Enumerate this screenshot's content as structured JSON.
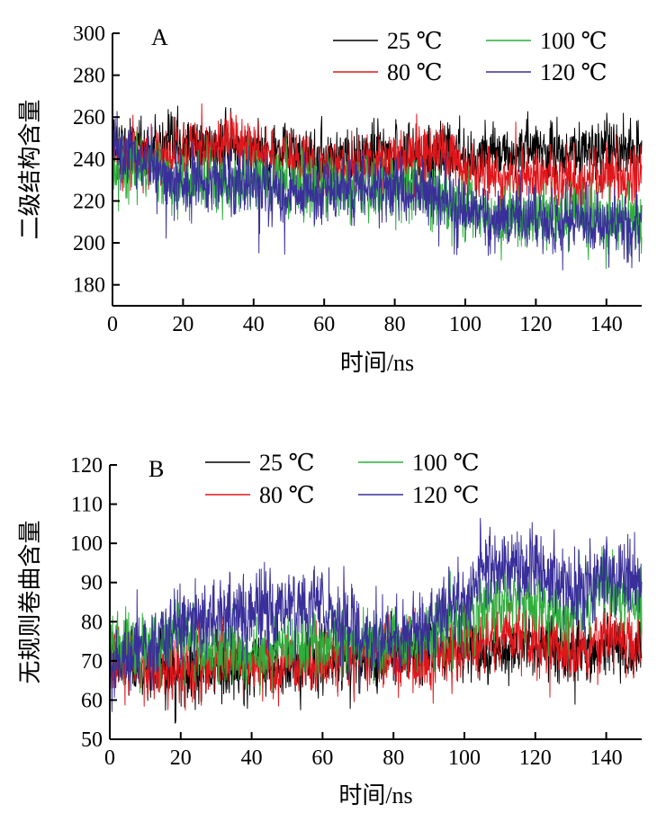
{
  "chart_data": [
    {
      "type": "line",
      "panel_label": "A",
      "xlabel": "时间/ns",
      "ylabel": "二级结构含量",
      "xlim": [
        0,
        150
      ],
      "ylim": [
        170,
        300
      ],
      "xticks": [
        0,
        20,
        40,
        60,
        80,
        100,
        120,
        140
      ],
      "yticks": [
        180,
        200,
        220,
        240,
        260,
        280,
        300
      ],
      "grid": false,
      "legend_position": "top-right",
      "series": [
        {
          "name": "25 ℃",
          "color": "#000000",
          "x": [
            0,
            10,
            20,
            30,
            40,
            50,
            60,
            70,
            80,
            90,
            100,
            110,
            120,
            130,
            140,
            150
          ],
          "y": [
            247,
            245,
            245,
            246,
            244,
            242,
            242,
            241,
            243,
            242,
            243,
            242,
            244,
            243,
            244,
            244
          ],
          "noise": 8
        },
        {
          "name": "80 ℃",
          "color": "#e0161b",
          "x": [
            0,
            10,
            20,
            30,
            40,
            50,
            60,
            70,
            80,
            90,
            100,
            110,
            120,
            130,
            140,
            150
          ],
          "y": [
            238,
            241,
            244,
            248,
            245,
            238,
            236,
            237,
            240,
            244,
            236,
            231,
            232,
            228,
            232,
            230
          ],
          "noise": 8
        },
        {
          "name": "100 ℃",
          "color": "#2fae3c",
          "x": [
            0,
            10,
            20,
            30,
            40,
            50,
            60,
            70,
            80,
            90,
            100,
            110,
            120,
            130,
            140,
            150
          ],
          "y": [
            240,
            235,
            226,
            231,
            230,
            227,
            226,
            228,
            227,
            223,
            217,
            209,
            213,
            213,
            210,
            212
          ],
          "noise": 9
        },
        {
          "name": "120 ℃",
          "color": "#3a2f9a",
          "x": [
            0,
            10,
            20,
            30,
            40,
            50,
            60,
            70,
            80,
            90,
            100,
            110,
            120,
            130,
            140,
            150
          ],
          "y": [
            244,
            238,
            227,
            229,
            228,
            223,
            225,
            227,
            226,
            225,
            215,
            212,
            211,
            211,
            208,
            205
          ],
          "noise": 9
        }
      ]
    },
    {
      "type": "line",
      "panel_label": "B",
      "xlabel": "时间/ns",
      "ylabel": "无规则卷曲含量",
      "xlim": [
        0,
        150
      ],
      "ylim": [
        50,
        120
      ],
      "xticks": [
        0,
        20,
        40,
        60,
        80,
        100,
        120,
        140
      ],
      "yticks": [
        50,
        60,
        70,
        80,
        90,
        100,
        110,
        120
      ],
      "grid": false,
      "legend_position": "top-right",
      "series": [
        {
          "name": "25 ℃",
          "color": "#000000",
          "x": [
            0,
            10,
            20,
            30,
            40,
            50,
            60,
            70,
            80,
            90,
            100,
            110,
            120,
            130,
            140,
            150
          ],
          "y": [
            70,
            68,
            66,
            68,
            67,
            69,
            70,
            70,
            72,
            72,
            73,
            72,
            74,
            72,
            73,
            72
          ],
          "noise": 4.5
        },
        {
          "name": "80 ℃",
          "color": "#e0161b",
          "x": [
            0,
            10,
            20,
            30,
            40,
            50,
            60,
            70,
            80,
            90,
            100,
            110,
            120,
            130,
            140,
            150
          ],
          "y": [
            70,
            68,
            67,
            70,
            70,
            68,
            70,
            72,
            71,
            70,
            74,
            76,
            75,
            72,
            76,
            74
          ],
          "noise": 4.5
        },
        {
          "name": "100 ℃",
          "color": "#2fae3c",
          "x": [
            0,
            10,
            20,
            30,
            40,
            50,
            60,
            70,
            80,
            90,
            100,
            110,
            120,
            130,
            140,
            150
          ],
          "y": [
            75,
            72,
            77,
            73,
            71,
            74,
            75,
            76,
            74,
            77,
            80,
            86,
            85,
            82,
            89,
            85
          ],
          "noise": 5
        },
        {
          "name": "120 ℃",
          "color": "#3a2f9a",
          "x": [
            0,
            10,
            20,
            30,
            40,
            50,
            60,
            70,
            80,
            90,
            100,
            110,
            120,
            130,
            140,
            150
          ],
          "y": [
            68,
            73,
            80,
            81,
            82,
            84,
            85,
            76,
            75,
            79,
            88,
            96,
            95,
            88,
            92,
            91
          ],
          "noise": 6
        }
      ]
    }
  ]
}
